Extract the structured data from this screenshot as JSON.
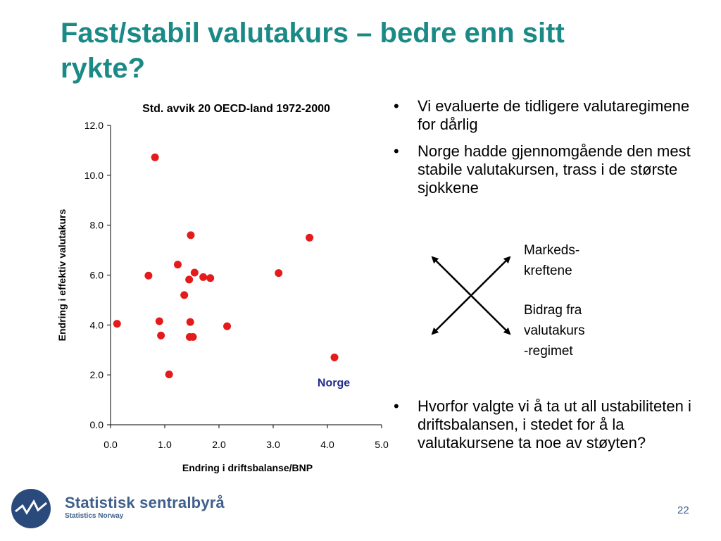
{
  "slide": {
    "title": "Fast/stabil valutakurs – bedre enn sitt rykte?",
    "page_number": "22"
  },
  "bullets_top": [
    "Vi evaluerte de tidligere valutaregimene for dårlig",
    "Norge hadde gjennomgående den mest stabile valutakursen, trass i de største sjokkene"
  ],
  "diagram": {
    "label_top": "Markeds-\nkreftene",
    "label_bottom": "Bidrag fra\nvalutakurs\n-regimet"
  },
  "bullets_bottom": [
    "Hvorfor valgte vi å ta ut all ustabiliteten i driftsbalansen, i stedet for å la valutakursene ta noe av støyten?"
  ],
  "logo": {
    "name": "Statistisk sentralbyrå",
    "subtitle": "Statistics Norway"
  },
  "colors": {
    "title": "#1b8a86",
    "points": "#e41b1b",
    "annotation": "#1f2a8a",
    "logo": "#3f5f8c"
  },
  "chart_data": {
    "type": "scatter",
    "title": "Std. avvik 20 OECD-land 1972-2000",
    "xlabel": "Endring i driftsbalanse/BNP",
    "ylabel": "Endring i effektiv valutakurs",
    "xlim": [
      0,
      5
    ],
    "ylim": [
      0,
      12
    ],
    "xticks": [
      "0.0",
      "1.0",
      "2.0",
      "3.0",
      "4.0",
      "5.0"
    ],
    "yticks": [
      "0.0",
      "2.0",
      "4.0",
      "6.0",
      "8.0",
      "10.0",
      "12.0"
    ],
    "grid": false,
    "annotation": {
      "text": "Norge",
      "x": 4.13,
      "y": 2.7
    },
    "points": [
      {
        "x": 0.12,
        "y": 4.05
      },
      {
        "x": 0.7,
        "y": 5.98
      },
      {
        "x": 0.82,
        "y": 10.72
      },
      {
        "x": 0.9,
        "y": 4.15
      },
      {
        "x": 0.93,
        "y": 3.58
      },
      {
        "x": 1.08,
        "y": 2.02
      },
      {
        "x": 1.24,
        "y": 6.42
      },
      {
        "x": 1.36,
        "y": 5.2
      },
      {
        "x": 1.45,
        "y": 5.82
      },
      {
        "x": 1.47,
        "y": 4.12
      },
      {
        "x": 1.48,
        "y": 7.6
      },
      {
        "x": 1.46,
        "y": 3.52
      },
      {
        "x": 1.52,
        "y": 3.52
      },
      {
        "x": 1.55,
        "y": 6.1
      },
      {
        "x": 1.71,
        "y": 5.92
      },
      {
        "x": 1.84,
        "y": 5.88
      },
      {
        "x": 2.15,
        "y": 3.95
      },
      {
        "x": 3.1,
        "y": 6.08
      },
      {
        "x": 3.67,
        "y": 7.5
      },
      {
        "x": 4.13,
        "y": 2.7
      }
    ]
  }
}
